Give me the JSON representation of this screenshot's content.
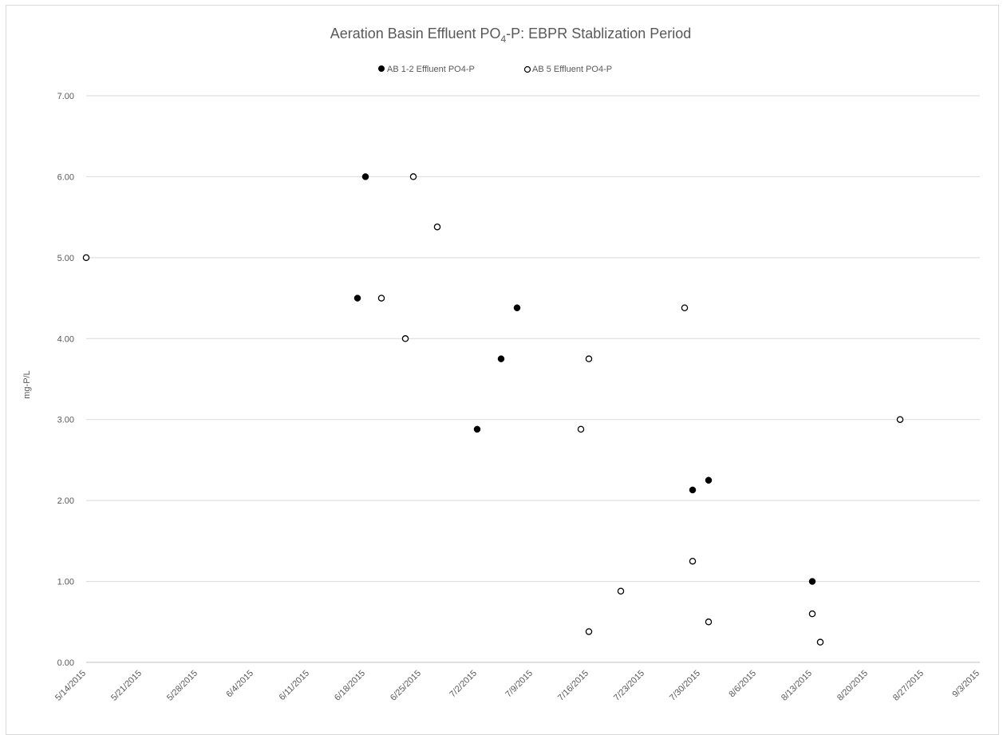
{
  "chart_data": {
    "type": "scatter",
    "title": {
      "prefix": "Aeration Basin Effluent PO",
      "subscript": "4",
      "suffix": "-P: EBPR Stablization Period"
    },
    "xlabel": "",
    "ylabel": "mg-P/L",
    "ylim": [
      0,
      7
    ],
    "ytick_values": [
      0,
      1,
      2,
      3,
      4,
      5,
      6,
      7
    ],
    "ytick_labels": [
      "0.00",
      "1.00",
      "2.00",
      "3.00",
      "4.00",
      "5.00",
      "6.00",
      "7.00"
    ],
    "xlim": [
      "5/14/2015",
      "9/3/2015"
    ],
    "xtick_labels": [
      "5/14/2015",
      "5/21/2015",
      "5/28/2015",
      "6/4/2015",
      "6/11/2015",
      "6/18/2015",
      "6/25/2015",
      "7/2/2015",
      "7/9/2015",
      "7/16/2015",
      "7/23/2015",
      "7/30/2015",
      "8/6/2015",
      "8/13/2015",
      "8/20/2015",
      "8/27/2015",
      "9/3/2015"
    ],
    "grid": "horizontal",
    "legend_position": "top",
    "series": [
      {
        "name": "AB 1-2 Effluent PO4-P",
        "marker": "filled-circle",
        "color": "#000000",
        "points": [
          {
            "x": "6/17/2015",
            "y": 4.5
          },
          {
            "x": "6/18/2015",
            "y": 6.0
          },
          {
            "x": "7/2/2015",
            "y": 2.88
          },
          {
            "x": "7/5/2015",
            "y": 3.75
          },
          {
            "x": "7/7/2015",
            "y": 4.38
          },
          {
            "x": "7/29/2015",
            "y": 2.13
          },
          {
            "x": "7/31/2015",
            "y": 2.25
          },
          {
            "x": "8/13/2015",
            "y": 1.0
          }
        ]
      },
      {
        "name": "AB 5 Effluent PO4-P",
        "marker": "hollow-circle",
        "color": "#000000",
        "points": [
          {
            "x": "5/14/2015",
            "y": 5.0
          },
          {
            "x": "6/20/2015",
            "y": 4.5
          },
          {
            "x": "6/23/2015",
            "y": 4.0
          },
          {
            "x": "6/24/2015",
            "y": 6.0
          },
          {
            "x": "6/27/2015",
            "y": 5.38
          },
          {
            "x": "7/15/2015",
            "y": 2.88
          },
          {
            "x": "7/16/2015",
            "y": 3.75
          },
          {
            "x": "7/16/2015",
            "y": 0.38
          },
          {
            "x": "7/20/2015",
            "y": 0.88
          },
          {
            "x": "7/28/2015",
            "y": 4.38
          },
          {
            "x": "7/29/2015",
            "y": 1.25
          },
          {
            "x": "7/31/2015",
            "y": 0.5
          },
          {
            "x": "8/13/2015",
            "y": 0.6
          },
          {
            "x": "8/14/2015",
            "y": 0.25
          },
          {
            "x": "8/24/2015",
            "y": 3.0
          }
        ]
      }
    ]
  }
}
